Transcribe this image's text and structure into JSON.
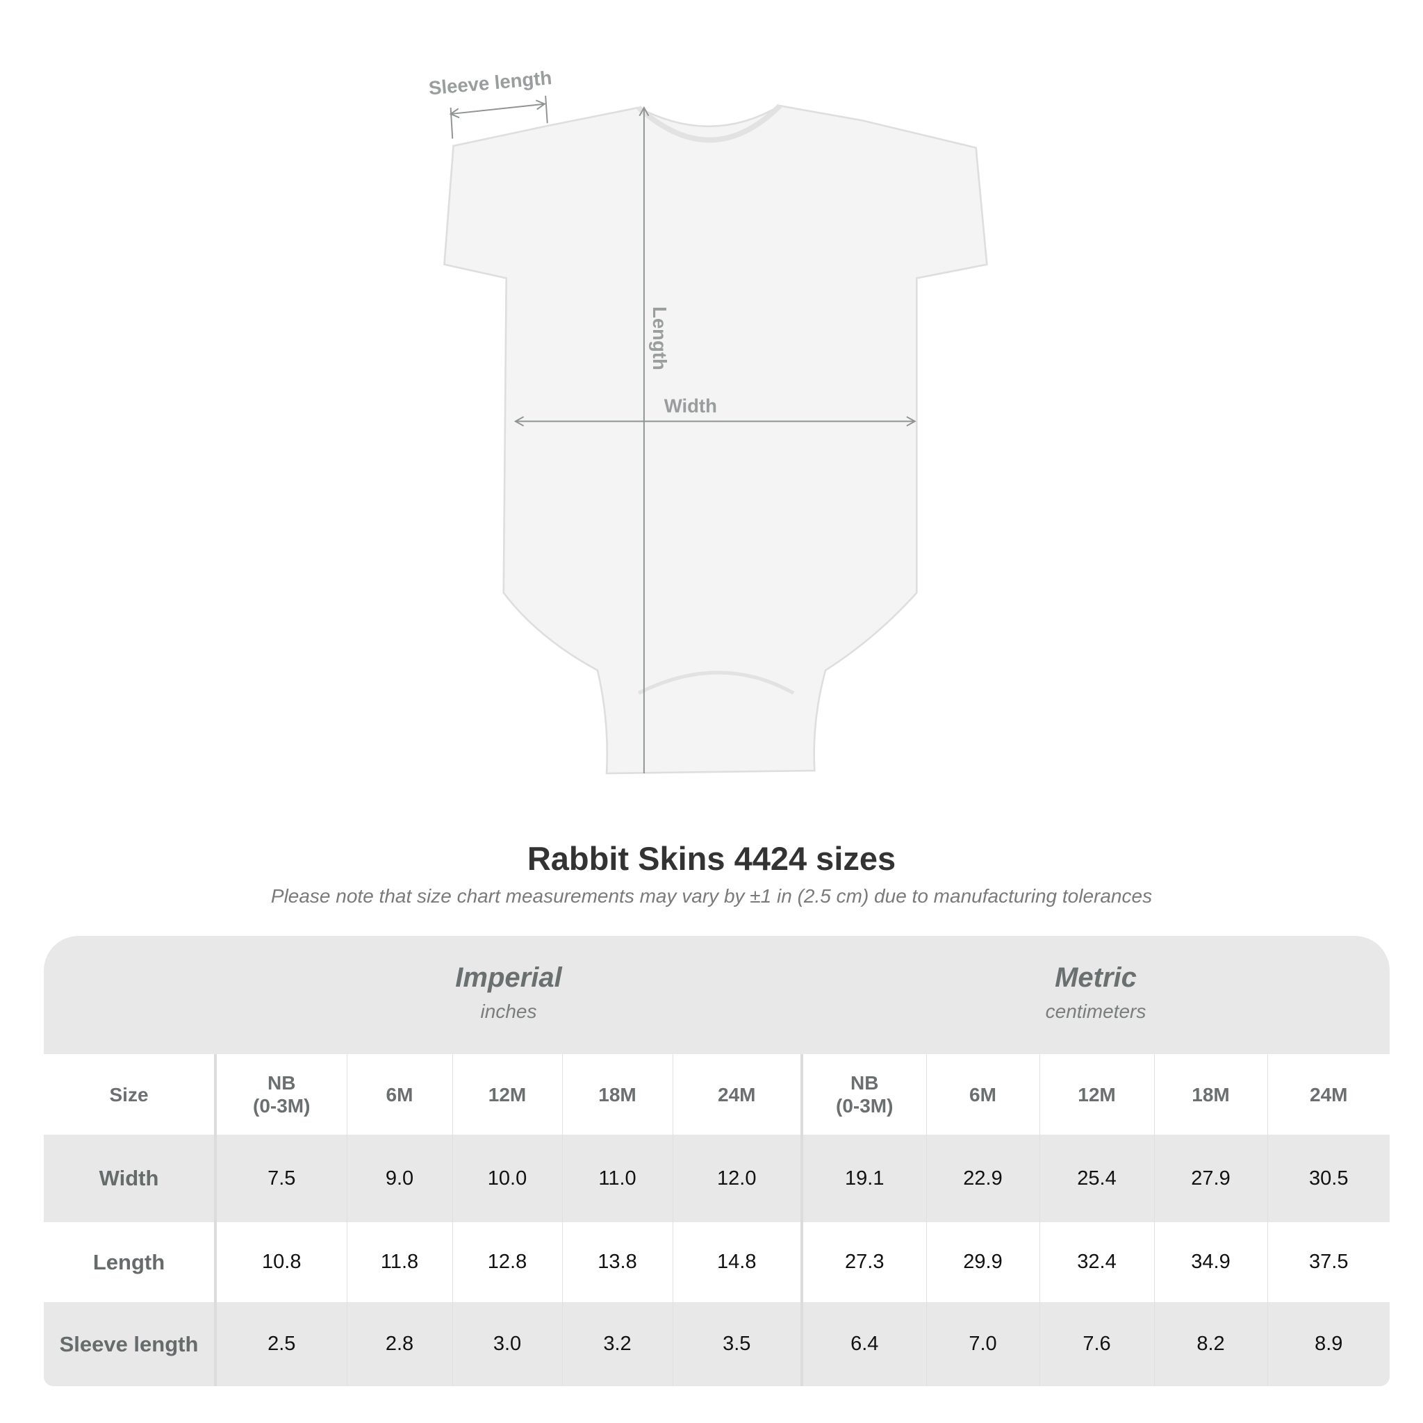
{
  "diagram": {
    "labels": {
      "sleeve_length": "Sleeve length",
      "length": "Length",
      "width": "Width"
    }
  },
  "title": "Rabbit Skins 4424 sizes",
  "subtitle": "Please note that size chart measurements may vary by ±1 in (2.5 cm) due to manufacturing tolerances",
  "table": {
    "imperial": {
      "name": "Imperial",
      "unit": "inches"
    },
    "metric": {
      "name": "Metric",
      "unit": "centimeters"
    },
    "size_label": "Size",
    "sizes": [
      "NB\n(0-3M)",
      "6M",
      "12M",
      "18M",
      "24M"
    ],
    "rows": [
      {
        "label": "Width",
        "imperial": [
          "7.5",
          "9.0",
          "10.0",
          "11.0",
          "12.0"
        ],
        "metric": [
          "19.1",
          "22.9",
          "25.4",
          "27.9",
          "30.5"
        ]
      },
      {
        "label": "Length",
        "imperial": [
          "10.8",
          "11.8",
          "12.8",
          "13.8",
          "14.8"
        ],
        "metric": [
          "27.3",
          "29.9",
          "32.4",
          "34.9",
          "37.5"
        ]
      },
      {
        "label": "Sleeve length",
        "imperial": [
          "2.5",
          "2.8",
          "3.0",
          "3.2",
          "3.5"
        ],
        "metric": [
          "6.4",
          "7.0",
          "7.6",
          "8.2",
          "8.9"
        ]
      }
    ]
  },
  "colors": {
    "band": "#e8e8e8",
    "header_text": "#6a6f6f",
    "measure_lines": "#8f9393"
  }
}
